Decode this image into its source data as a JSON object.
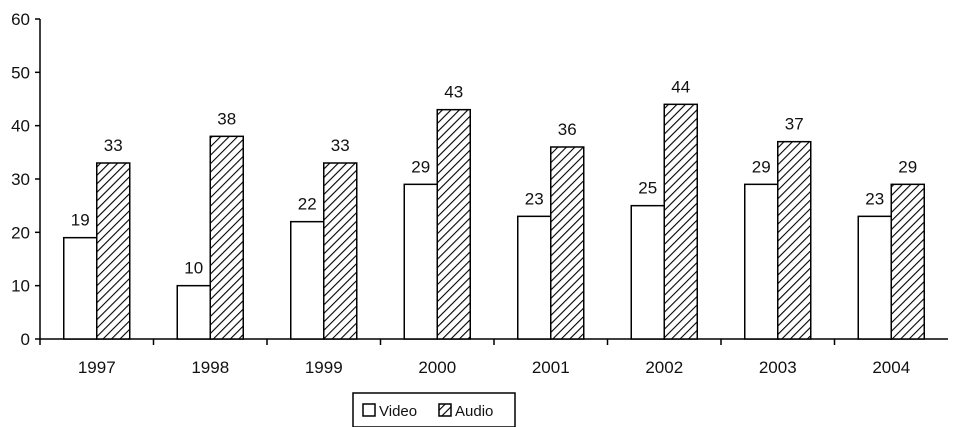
{
  "chart_data": {
    "type": "bar",
    "categories": [
      "1997",
      "1998",
      "1999",
      "2000",
      "2001",
      "2002",
      "2003",
      "2004"
    ],
    "series": [
      {
        "name": "Video",
        "values": [
          19,
          10,
          22,
          29,
          23,
          25,
          29,
          23
        ],
        "fill": "#ffffff",
        "pattern": "none"
      },
      {
        "name": "Audio",
        "values": [
          33,
          38,
          33,
          43,
          36,
          44,
          37,
          29
        ],
        "fill": "#ffffff",
        "pattern": "diagonal-hatch"
      }
    ],
    "ylim": [
      0,
      60
    ],
    "yticks": [
      "0",
      "10",
      "20",
      "30",
      "40",
      "50",
      "60"
    ],
    "title": "",
    "xlabel": "",
    "ylabel": "",
    "grid": false,
    "legend": {
      "placement": "bottom-center"
    },
    "colors": {
      "stroke": "#000000",
      "hatch": "#000000",
      "background": "#ffffff"
    }
  }
}
